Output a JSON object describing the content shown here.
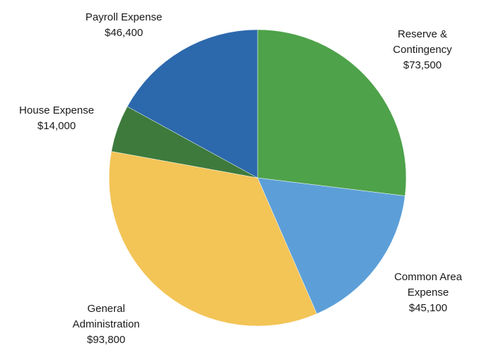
{
  "chart_data": {
    "type": "pie",
    "title": "",
    "slices": [
      {
        "name_lines": [
          "Reserve &",
          "Contingency"
        ],
        "value_label": "$73,500",
        "value": 73500,
        "color": "#4ea24a"
      },
      {
        "name_lines": [
          "Common Area",
          "Expense"
        ],
        "value_label": "$45,100",
        "value": 45100,
        "color": "#5c9fd8"
      },
      {
        "name_lines": [
          "General",
          "Administration"
        ],
        "value_label": "$93,800",
        "value": 93800,
        "color": "#f3c456"
      },
      {
        "name_lines": [
          "House Expense"
        ],
        "value_label": "$14,000",
        "value": 14000,
        "color": "#3d7a3c"
      },
      {
        "name_lines": [
          "Payroll Expense"
        ],
        "value_label": "$46,400",
        "value": 46400,
        "color": "#2c68ac"
      }
    ]
  }
}
